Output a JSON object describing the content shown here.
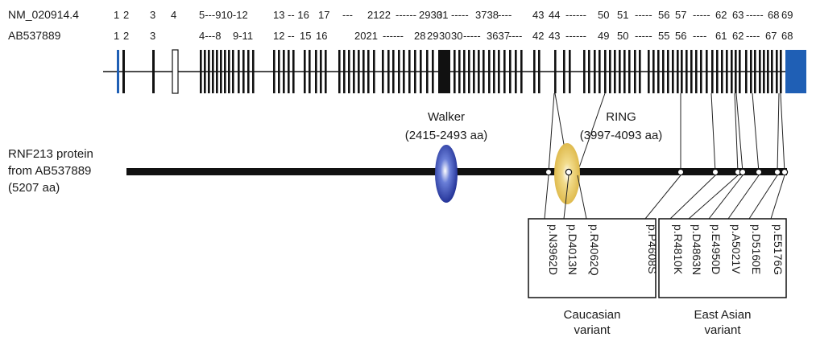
{
  "transcripts": {
    "nm": {
      "name": "NM_020914.4",
      "exon_labels": [
        "1",
        "2",
        "3",
        "4",
        "5---910-12",
        "13 -- 16",
        "17",
        "---",
        "2122",
        "------",
        "2930",
        "31",
        "-----",
        "3738",
        "----",
        "43",
        "44",
        "------",
        "50",
        "51",
        "-----",
        "56",
        "57",
        "-----",
        "62",
        "63",
        "-----",
        "68",
        "69"
      ]
    },
    "ab": {
      "name": "AB537889",
      "exon_labels": [
        "1",
        "2",
        "3",
        "4---8",
        "9-11",
        "12 --",
        "15",
        "16",
        "2021",
        "------",
        "28",
        "29",
        "30",
        "30",
        "-----",
        "3637",
        "----",
        "42",
        "43",
        "------",
        "49",
        "50",
        "-----",
        "55",
        "56",
        "----",
        "61",
        "62",
        "----",
        "67",
        "68"
      ]
    }
  },
  "protein": {
    "label_lines": [
      "RNF213 protein",
      "from AB537889",
      "(5207 aa)"
    ]
  },
  "domains": [
    {
      "id": "walker",
      "name": "Walker",
      "range": "(2415-2493 aa)",
      "color": "#2a3aa8"
    },
    {
      "id": "ring",
      "name": "RING",
      "range": "(3997-4093 aa)",
      "color": "#e8c040"
    }
  ],
  "variant_groups": [
    {
      "id": "caucasian",
      "caption_lines": [
        "Caucasian",
        "variant"
      ],
      "variants": [
        "p.N3962D",
        "p.D4013N",
        "p.R4062Q",
        "p.P4608S"
      ]
    },
    {
      "id": "east-asian",
      "caption_lines": [
        "East Asian",
        "variant"
      ],
      "variants": [
        "p.R4810K",
        "p.D4863N",
        "p.E4950D",
        "p.A5021V",
        "p.D5160E",
        "p.E5176G"
      ]
    }
  ],
  "colors": {
    "exon": "#111111",
    "blue_exon": "#1f5fb5",
    "line": "#111111"
  }
}
